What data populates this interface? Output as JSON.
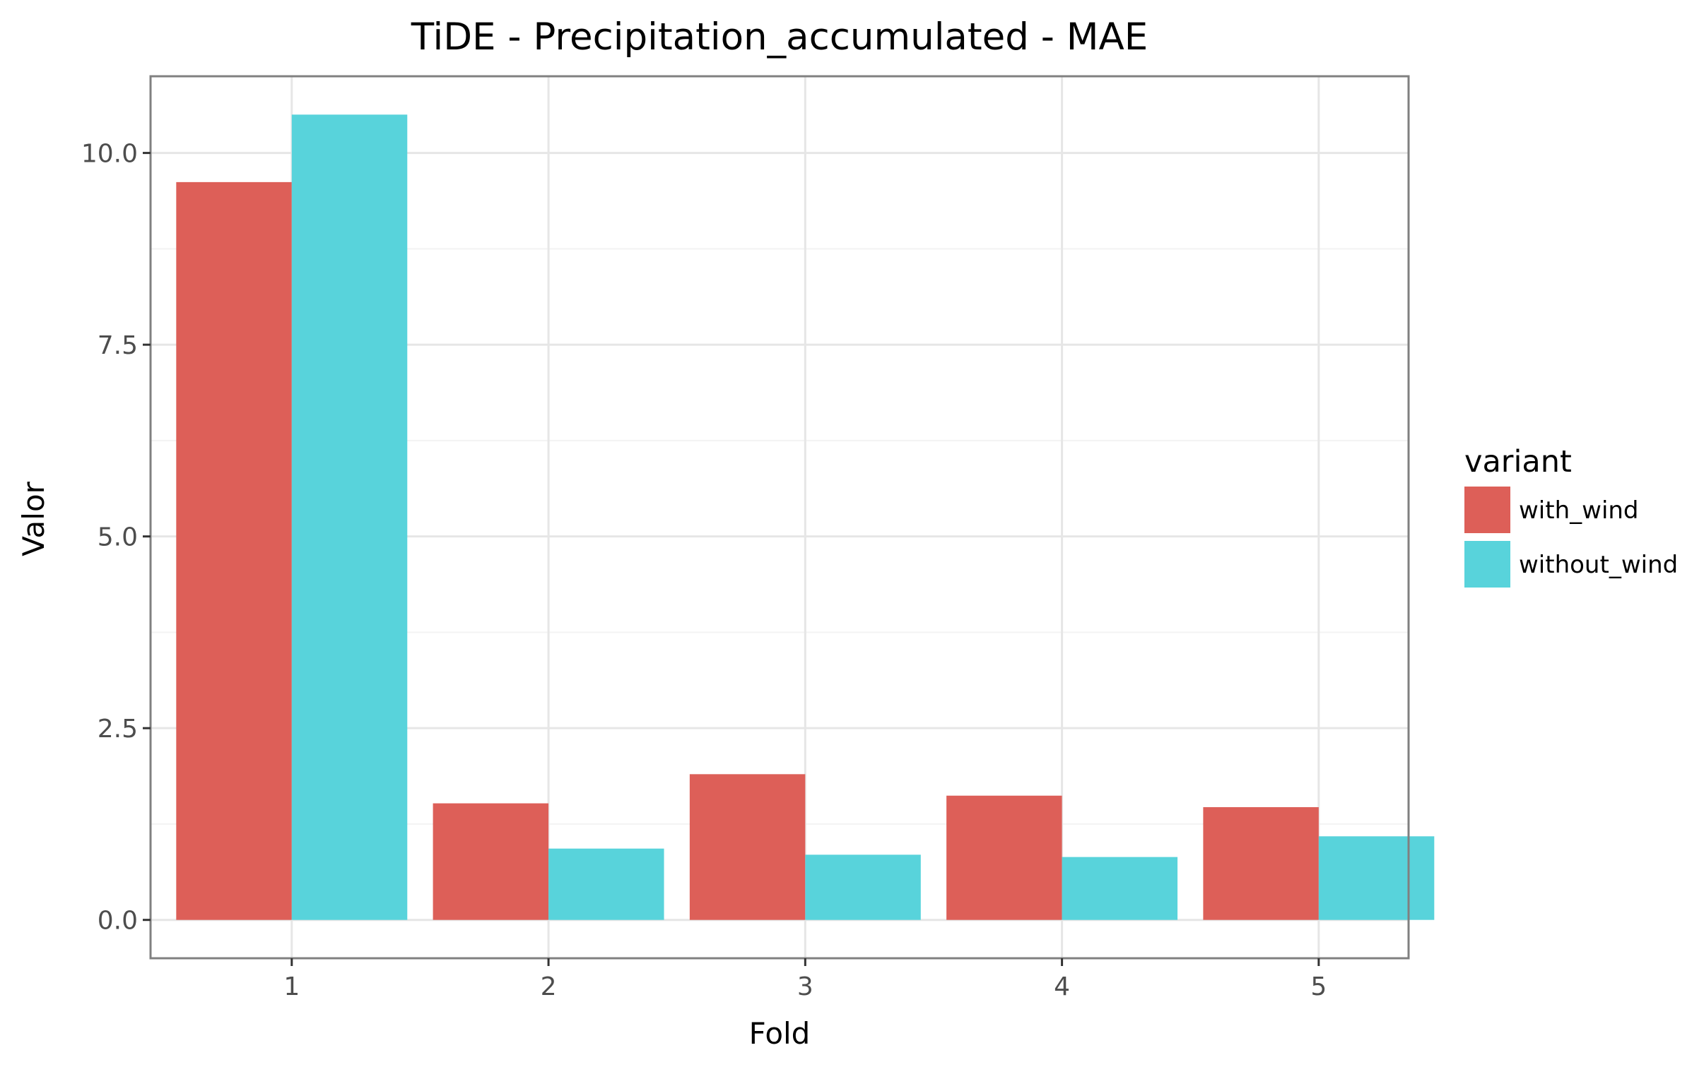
{
  "chart_data": {
    "type": "bar",
    "title": "TiDE - Precipitation_accumulated - MAE",
    "xlabel": "Fold",
    "ylabel": "Valor",
    "categories": [
      "1",
      "2",
      "3",
      "4",
      "5"
    ],
    "series": [
      {
        "name": "with_wind",
        "color": "#dd5f58",
        "values": [
          9.62,
          1.52,
          1.9,
          1.62,
          1.47
        ]
      },
      {
        "name": "without_wind",
        "color": "#58d3db",
        "values": [
          10.5,
          0.93,
          0.85,
          0.82,
          1.09
        ]
      }
    ],
    "ylim": [
      -0.5,
      11.0
    ],
    "yticks": [
      0.0,
      2.5,
      5.0,
      7.5,
      10.0
    ],
    "ytick_labels": [
      "0.0",
      "2.5",
      "5.0",
      "7.5",
      "10.0"
    ],
    "grid": true,
    "legend": {
      "title": "variant",
      "position": "right"
    }
  }
}
